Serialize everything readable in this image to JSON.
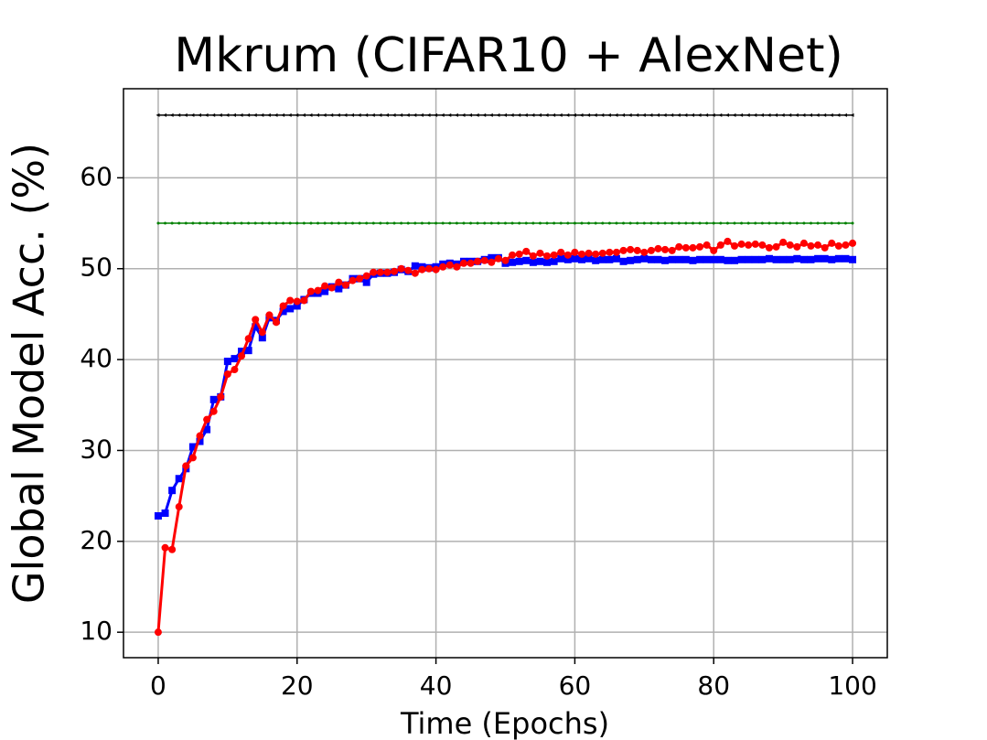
{
  "chart_data": {
    "type": "line",
    "title": "Mkrum (CIFAR10 + AlexNet)",
    "xlabel": "Time (Epochs)",
    "ylabel": "Global Model Acc. (%)",
    "x": [
      0,
      1,
      2,
      3,
      4,
      5,
      6,
      7,
      8,
      9,
      10,
      11,
      12,
      13,
      14,
      15,
      16,
      17,
      18,
      19,
      20,
      21,
      22,
      23,
      24,
      25,
      26,
      27,
      28,
      29,
      30,
      31,
      32,
      33,
      34,
      35,
      36,
      37,
      38,
      39,
      40,
      41,
      42,
      43,
      44,
      45,
      46,
      47,
      48,
      49,
      50,
      51,
      52,
      53,
      54,
      55,
      56,
      57,
      58,
      59,
      60,
      61,
      62,
      63,
      64,
      65,
      66,
      67,
      68,
      69,
      70,
      71,
      72,
      73,
      74,
      75,
      76,
      77,
      78,
      79,
      80,
      81,
      82,
      83,
      84,
      85,
      86,
      87,
      88,
      89,
      90,
      91,
      92,
      93,
      94,
      95,
      96,
      97,
      98,
      99,
      100
    ],
    "series": [
      {
        "color": "#000000",
        "marker": "triangle",
        "values": [
          66.9,
          66.9,
          66.9,
          66.9,
          66.9,
          66.9,
          66.9,
          66.9,
          66.9,
          66.9,
          66.9,
          66.9,
          66.9,
          66.9,
          66.9,
          66.9,
          66.9,
          66.9,
          66.9,
          66.9,
          66.9,
          66.9,
          66.9,
          66.9,
          66.9,
          66.9,
          66.9,
          66.9,
          66.9,
          66.9,
          66.9,
          66.9,
          66.9,
          66.9,
          66.9,
          66.9,
          66.9,
          66.9,
          66.9,
          66.9,
          66.9,
          66.9,
          66.9,
          66.9,
          66.9,
          66.9,
          66.9,
          66.9,
          66.9,
          66.9,
          66.9,
          66.9,
          66.9,
          66.9,
          66.9,
          66.9,
          66.9,
          66.9,
          66.9,
          66.9,
          66.9,
          66.9,
          66.9,
          66.9,
          66.9,
          66.9,
          66.9,
          66.9,
          66.9,
          66.9,
          66.9,
          66.9,
          66.9,
          66.9,
          66.9,
          66.9,
          66.9,
          66.9,
          66.9,
          66.9,
          66.9,
          66.9,
          66.9,
          66.9,
          66.9,
          66.9,
          66.9,
          66.9,
          66.9,
          66.9,
          66.9,
          66.9,
          66.9,
          66.9,
          66.9,
          66.9,
          66.9,
          66.9,
          66.9,
          66.9,
          66.9
        ]
      },
      {
        "color": "#008000",
        "marker": "dot",
        "values": [
          55,
          55,
          55,
          55,
          55,
          55,
          55,
          55,
          55,
          55,
          55,
          55,
          55,
          55,
          55,
          55,
          55,
          55,
          55,
          55,
          55,
          55,
          55,
          55,
          55,
          55,
          55,
          55,
          55,
          55,
          55,
          55,
          55,
          55,
          55,
          55,
          55,
          55,
          55,
          55,
          55,
          55,
          55,
          55,
          55,
          55,
          55,
          55,
          55,
          55,
          55,
          55,
          55,
          55,
          55,
          55,
          55,
          55,
          55,
          55,
          55,
          55,
          55,
          55,
          55,
          55,
          55,
          55,
          55,
          55,
          55,
          55,
          55,
          55,
          55,
          55,
          55,
          55,
          55,
          55,
          55,
          55,
          55,
          55,
          55,
          55,
          55,
          55,
          55,
          55,
          55,
          55,
          55,
          55,
          55,
          55,
          55,
          55,
          55,
          55,
          55
        ]
      },
      {
        "color": "#0000ff",
        "marker": "square",
        "values": [
          22.8,
          23.1,
          25.6,
          26.9,
          28.0,
          30.4,
          31.0,
          32.3,
          35.6,
          35.9,
          39.8,
          40.1,
          40.9,
          41.0,
          43.6,
          42.4,
          44.6,
          44.3,
          45.3,
          45.6,
          45.9,
          46.6,
          47.3,
          47.3,
          47.5,
          48.0,
          47.8,
          48.2,
          48.9,
          48.9,
          48.5,
          49.4,
          49.5,
          49.5,
          49.6,
          49.9,
          49.7,
          50.3,
          50.2,
          50.1,
          50.2,
          50.5,
          50.6,
          50.5,
          50.8,
          50.8,
          50.8,
          51.0,
          51.2,
          51.2,
          50.6,
          50.7,
          50.8,
          50.9,
          50.7,
          50.8,
          50.7,
          50.8,
          51.1,
          51.0,
          51.1,
          51.0,
          51.1,
          50.9,
          51.0,
          51.0,
          51.1,
          50.8,
          50.9,
          51.0,
          51.1,
          51.0,
          51.0,
          50.9,
          51.0,
          51.0,
          51.0,
          50.9,
          51.0,
          51.0,
          51.0,
          51.0,
          50.9,
          50.9,
          51.0,
          51.0,
          51.0,
          51.0,
          51.1,
          51.0,
          51.0,
          51.0,
          51.1,
          51.0,
          51.0,
          51.1,
          51.1,
          51.0,
          51.1,
          51.1,
          51.0
        ]
      },
      {
        "color": "#ff0000",
        "marker": "circle",
        "values": [
          10.0,
          19.3,
          19.1,
          23.8,
          28.3,
          29.2,
          31.6,
          33.4,
          34.3,
          35.9,
          38.4,
          38.9,
          40.4,
          42.3,
          44.4,
          43.0,
          44.9,
          44.1,
          45.9,
          46.5,
          46.4,
          46.5,
          47.5,
          47.6,
          48.1,
          47.9,
          48.5,
          48.2,
          48.7,
          48.9,
          49.2,
          49.6,
          49.6,
          49.6,
          49.7,
          50.0,
          49.8,
          49.5,
          49.9,
          50.0,
          49.9,
          50.2,
          50.4,
          50.2,
          50.6,
          50.6,
          50.8,
          50.9,
          50.7,
          51.1,
          50.9,
          51.5,
          51.6,
          51.9,
          51.4,
          51.7,
          51.4,
          51.5,
          51.8,
          51.5,
          51.8,
          51.6,
          51.7,
          51.6,
          51.7,
          51.8,
          51.8,
          52.0,
          52.1,
          52.0,
          51.8,
          52.0,
          52.2,
          52.1,
          52.0,
          52.4,
          52.3,
          52.3,
          52.4,
          52.6,
          52.0,
          52.6,
          53.0,
          52.5,
          52.7,
          52.6,
          52.7,
          52.6,
          52.3,
          52.4,
          52.9,
          52.6,
          52.4,
          52.8,
          52.5,
          52.6,
          52.3,
          52.8,
          52.5,
          52.6,
          52.8
        ]
      }
    ],
    "xlim": [
      -5,
      105
    ],
    "ylim": [
      7.2,
      69.8
    ],
    "xticks": [
      0,
      20,
      40,
      60,
      80,
      100
    ],
    "yticks": [
      10,
      20,
      30,
      40,
      50,
      60
    ],
    "grid": true
  }
}
